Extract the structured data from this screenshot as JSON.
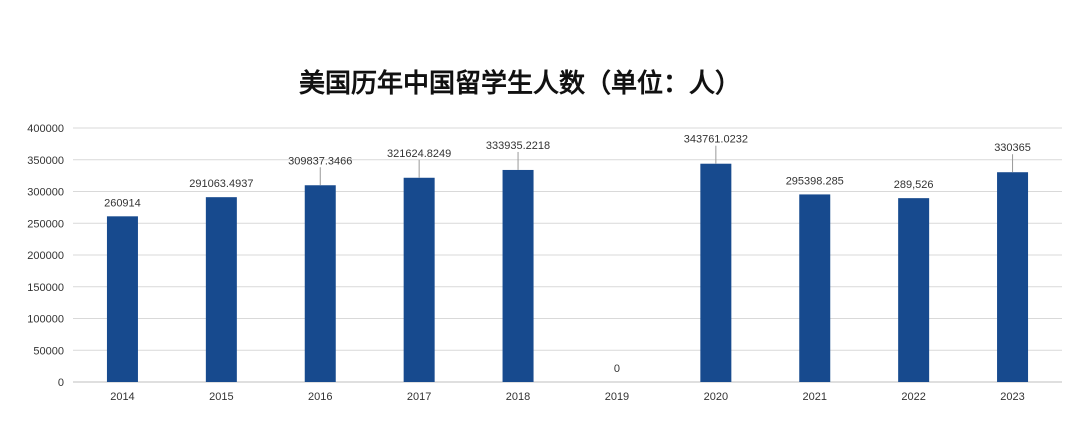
{
  "chart_data": {
    "type": "bar",
    "title": "美国历年中国留学生人数（单位：人）",
    "categories": [
      "2014",
      "2015",
      "2016",
      "2017",
      "2018",
      "2019",
      "2020",
      "2021",
      "2022",
      "2023"
    ],
    "values": [
      260914,
      291063.4937,
      309837.3466,
      321624.8249,
      333935.2218,
      0,
      343761.0232,
      295398.285,
      289526,
      330365
    ],
    "data_labels": [
      "260914",
      "291063.4937",
      "309837.3466",
      "321624.8249",
      "333935.2218",
      "0",
      "343761.0232",
      "295398.285",
      "289,526",
      "330365"
    ],
    "ylim": [
      0,
      400000
    ],
    "yticks": [
      0,
      50000,
      100000,
      150000,
      200000,
      250000,
      300000,
      350000,
      400000
    ],
    "ytick_labels": [
      "0",
      "50000",
      "100000",
      "150000",
      "200000",
      "250000",
      "300000",
      "350000",
      "400000"
    ],
    "xlabel": "",
    "ylabel": "",
    "grid": true,
    "bar_color": "#174a8e",
    "grid_color": "#d9d9d9"
  }
}
